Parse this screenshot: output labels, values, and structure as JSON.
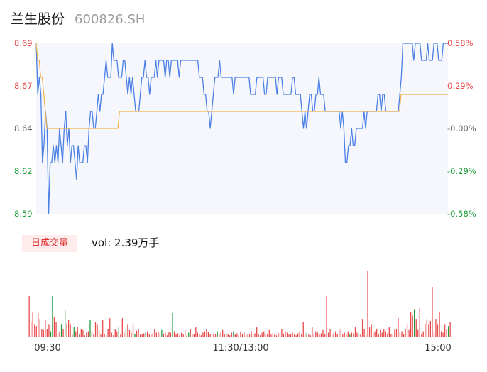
{
  "header": {
    "name": "兰生股份",
    "code": "600826.SH"
  },
  "volume_panel": {
    "badge": "日成交量",
    "vol_label": "vol: 2.39万手"
  },
  "colors": {
    "price_line": "#4a7fe6",
    "avg_line": "#f2b347",
    "up": "#e84a4a",
    "down": "#1e9e3a",
    "flat": "#666666",
    "area": "#f5f7fd"
  },
  "chart_data": [
    {
      "type": "line",
      "title": "",
      "x_ticks": [
        "09:30",
        "11:30/13:00",
        "15:00"
      ],
      "price_ticks": [
        "8.69",
        "8.67",
        "8.64",
        "8.62",
        "8.59"
      ],
      "pct_ticks": [
        "0.58%",
        "0.29%",
        "-0.00%",
        "-0.29%",
        "-0.58%"
      ],
      "ylim": [
        8.59,
        8.69
      ],
      "prev_close": 8.64,
      "series": [
        {
          "role": "price",
          "values": [
            8.69,
            8.66,
            8.67,
            8.66,
            8.62,
            8.63,
            8.65,
            8.64,
            8.59,
            8.62,
            8.62,
            8.63,
            8.62,
            8.63,
            8.62,
            8.64,
            8.63,
            8.62,
            8.64,
            8.65,
            8.63,
            8.64,
            8.62,
            8.63,
            8.63,
            8.62,
            8.61,
            8.63,
            8.62,
            8.62,
            8.62,
            8.63,
            8.63,
            8.62,
            8.64,
            8.65,
            8.65,
            8.64,
            8.64,
            8.65,
            8.66,
            8.65,
            8.66,
            8.66,
            8.67,
            8.68,
            8.67,
            8.67,
            8.67,
            8.69,
            8.68,
            8.68,
            8.68,
            8.67,
            8.67,
            8.67,
            8.68,
            8.68,
            8.67,
            8.66,
            8.67,
            8.66,
            8.67,
            8.66,
            8.65,
            8.65,
            8.65,
            8.66,
            8.67,
            8.67,
            8.68,
            8.67,
            8.67,
            8.66,
            8.67,
            8.67,
            8.67,
            8.68,
            8.67,
            8.68,
            8.68,
            8.68,
            8.68,
            8.67,
            8.68,
            8.68,
            8.67,
            8.68,
            8.68,
            8.68,
            8.68,
            8.68,
            8.67,
            8.68,
            8.68,
            8.68,
            8.68,
            8.68,
            8.68,
            8.68,
            8.68,
            8.68,
            8.68,
            8.68,
            8.68,
            8.67,
            8.67,
            8.67,
            8.66,
            8.66,
            8.65,
            8.65,
            8.64,
            8.65,
            8.66,
            8.67,
            8.67,
            8.67,
            8.68,
            8.67,
            8.67,
            8.67,
            8.67,
            8.67,
            8.67,
            8.67,
            8.67,
            8.66,
            8.67,
            8.67,
            8.67,
            8.67,
            8.67,
            8.67,
            8.67,
            8.67,
            8.67,
            8.67,
            8.66,
            8.66,
            8.66,
            8.66,
            8.67,
            8.67,
            8.67,
            8.67,
            8.67,
            8.66,
            8.66,
            8.67,
            8.67,
            8.67,
            8.67,
            8.67,
            8.67,
            8.66,
            8.67,
            8.67,
            8.67,
            8.66,
            8.66,
            8.66,
            8.66,
            8.66,
            8.66,
            8.67,
            8.67,
            8.66,
            8.66,
            8.66,
            8.66,
            8.65,
            8.64,
            8.65,
            8.64,
            8.65,
            8.66,
            8.66,
            8.65,
            8.65,
            8.66,
            8.66,
            8.67,
            8.66,
            8.66,
            8.66,
            8.65,
            8.65,
            8.65,
            8.65,
            8.65,
            8.65,
            8.65,
            8.65,
            8.65,
            8.65,
            8.64,
            8.65,
            8.64,
            8.62,
            8.62,
            8.63,
            8.63,
            8.64,
            8.63,
            8.63,
            8.64,
            8.64,
            8.64,
            8.64,
            8.64,
            8.65,
            8.64,
            8.65,
            8.65,
            8.65,
            8.65,
            8.65,
            8.65,
            8.65,
            8.66,
            8.66,
            8.65,
            8.66,
            8.66,
            8.65,
            8.65,
            8.65,
            8.65,
            8.65,
            8.65,
            8.65,
            8.65,
            8.65,
            8.66,
            8.67,
            8.69,
            8.69,
            8.69,
            8.69,
            8.69,
            8.69,
            8.69,
            8.68,
            8.69,
            8.69,
            8.69,
            8.69,
            8.68,
            8.68,
            8.68,
            8.68,
            8.69,
            8.68,
            8.68,
            8.68,
            8.69,
            8.69,
            8.69,
            8.68,
            8.68,
            8.68,
            8.69,
            8.69,
            8.69,
            8.69
          ]
        },
        {
          "role": "average",
          "values": [
            8.69,
            8.68,
            8.68,
            8.67,
            8.67,
            8.66,
            8.65,
            8.64,
            8.64,
            8.64,
            8.64,
            8.64,
            8.64,
            8.64,
            8.64,
            8.64,
            8.64,
            8.64,
            8.64,
            8.64,
            8.64,
            8.64,
            8.64,
            8.64,
            8.64,
            8.64,
            8.64,
            8.64,
            8.64,
            8.64,
            8.64,
            8.64,
            8.64,
            8.64,
            8.64,
            8.64,
            8.64,
            8.64,
            8.64,
            8.64,
            8.64,
            8.64,
            8.64,
            8.64,
            8.64,
            8.64,
            8.64,
            8.64,
            8.64,
            8.64,
            8.64,
            8.64,
            8.64,
            8.64,
            8.64,
            8.65,
            8.65,
            8.65,
            8.65,
            8.65,
            8.65,
            8.65,
            8.65,
            8.65,
            8.65,
            8.65,
            8.65,
            8.65,
            8.65,
            8.65,
            8.65,
            8.65,
            8.65,
            8.65,
            8.65,
            8.65,
            8.65,
            8.65,
            8.65,
            8.65,
            8.65,
            8.65,
            8.65,
            8.65,
            8.65,
            8.65,
            8.65,
            8.65,
            8.65,
            8.65,
            8.65,
            8.65,
            8.65,
            8.65,
            8.65,
            8.65,
            8.65,
            8.65,
            8.65,
            8.65,
            8.65,
            8.65,
            8.65,
            8.65,
            8.65,
            8.65,
            8.65,
            8.65,
            8.65,
            8.65,
            8.65,
            8.65,
            8.65,
            8.65,
            8.65,
            8.65,
            8.65,
            8.65,
            8.65,
            8.65,
            8.65,
            8.65,
            8.65,
            8.65,
            8.65,
            8.65,
            8.65,
            8.65,
            8.65,
            8.65,
            8.65,
            8.65,
            8.65,
            8.65,
            8.65,
            8.65,
            8.65,
            8.65,
            8.65,
            8.65,
            8.65,
            8.65,
            8.65,
            8.65,
            8.65,
            8.65,
            8.65,
            8.65,
            8.65,
            8.65,
            8.65,
            8.65,
            8.65,
            8.65,
            8.65,
            8.65,
            8.65,
            8.65,
            8.65,
            8.65,
            8.65,
            8.65,
            8.65,
            8.65,
            8.65,
            8.65,
            8.65,
            8.65,
            8.65,
            8.65,
            8.65,
            8.65,
            8.65,
            8.65,
            8.65,
            8.65,
            8.65,
            8.65,
            8.65,
            8.65,
            8.65,
            8.65,
            8.65,
            8.65,
            8.65,
            8.65,
            8.65,
            8.65,
            8.65,
            8.65,
            8.65,
            8.65,
            8.65,
            8.65,
            8.65,
            8.65,
            8.65,
            8.65,
            8.65,
            8.65,
            8.65,
            8.65,
            8.65,
            8.65,
            8.65,
            8.65,
            8.65,
            8.65,
            8.65,
            8.65,
            8.65,
            8.65,
            8.65,
            8.65,
            8.65,
            8.65,
            8.65,
            8.65,
            8.65,
            8.65,
            8.65,
            8.65,
            8.65,
            8.65,
            8.65,
            8.65,
            8.65,
            8.65,
            8.65,
            8.65,
            8.65,
            8.65,
            8.65,
            8.65,
            8.65,
            8.65,
            8.65,
            8.65,
            8.65,
            8.65,
            8.65,
            8.66,
            8.66,
            8.66,
            8.66,
            8.66,
            8.66,
            8.66,
            8.66,
            8.66,
            8.66,
            8.66,
            8.66,
            8.66,
            8.66,
            8.66,
            8.66,
            8.66,
            8.66,
            8.66,
            8.66,
            8.66,
            8.66,
            8.66,
            8.66,
            8.66,
            8.66,
            8.66,
            8.66,
            8.66,
            8.66,
            8.66,
            8.66
          ]
        }
      ]
    },
    {
      "type": "bar",
      "title": "",
      "x_ticks": [
        "09:30",
        "11:30/13:00",
        "15:00"
      ],
      "ylim": [
        0,
        100
      ],
      "values": [
        62,
        22,
        38,
        18,
        16,
        36,
        26,
        12,
        10,
        25,
        12,
        18,
        8,
        62,
        30,
        22,
        5,
        8,
        18,
        12,
        40,
        20,
        25,
        18,
        4,
        15,
        8,
        14,
        3,
        12,
        10,
        2,
        6,
        8,
        25,
        8,
        4,
        22,
        18,
        10,
        3,
        25,
        4,
        2,
        12,
        28,
        6,
        2,
        12,
        8,
        14,
        3,
        28,
        6,
        12,
        18,
        10,
        6,
        18,
        4,
        9,
        12,
        3,
        4,
        5,
        6,
        8,
        4,
        3,
        5,
        12,
        6,
        8,
        5,
        10,
        4,
        6,
        2,
        7,
        6,
        36,
        8,
        3,
        5,
        2,
        6,
        4,
        10,
        2,
        6,
        12,
        3,
        4,
        14,
        6,
        4,
        2,
        6,
        8,
        12,
        7,
        4,
        3,
        5,
        4,
        8,
        3,
        6,
        10,
        4,
        3,
        4,
        2,
        6,
        8,
        3,
        5,
        2,
        8,
        4,
        6,
        2,
        3,
        4,
        8,
        3,
        5,
        14,
        4,
        2,
        6,
        8,
        3,
        4,
        10,
        3,
        5,
        4,
        2,
        6,
        3,
        12,
        4,
        8,
        6,
        3,
        4,
        6,
        3,
        2,
        5,
        8,
        4,
        22,
        4,
        6,
        3,
        2,
        14,
        4,
        8,
        6,
        3,
        5,
        10,
        4,
        62,
        6,
        12,
        3,
        5,
        8,
        4,
        10,
        12,
        3,
        6,
        4,
        8,
        3,
        6,
        5,
        14,
        6,
        4,
        3,
        26,
        12,
        3,
        100,
        14,
        18,
        6,
        8,
        12,
        4,
        10,
        6,
        12,
        8,
        5,
        14,
        4,
        3,
        10,
        12,
        28,
        6,
        8,
        4,
        12,
        20,
        10,
        38,
        32,
        42,
        26,
        10,
        44,
        4,
        8,
        20,
        26,
        18,
        24,
        76,
        8,
        26,
        18,
        38,
        8,
        6,
        18,
        12,
        16,
        22
      ],
      "colors": [
        "up",
        "up",
        "up",
        "up",
        "up",
        "up",
        "up",
        "up",
        "up",
        "up",
        "up",
        "up",
        "down",
        "down",
        "up",
        "up",
        "up",
        "up",
        "down",
        "up",
        "down",
        "up",
        "up",
        "up",
        "up",
        "down",
        "up",
        "up",
        "flat",
        "up",
        "up",
        "up",
        "up",
        "up",
        "down",
        "up",
        "up",
        "up",
        "up",
        "up",
        "up",
        "up",
        "up",
        "down",
        "up",
        "up",
        "up",
        "up",
        "up",
        "up",
        "down",
        "up",
        "up",
        "up",
        "down",
        "up",
        "up",
        "up",
        "up",
        "down",
        "up",
        "up",
        "up",
        "up",
        "up",
        "down",
        "up",
        "up",
        "up",
        "up",
        "up",
        "up",
        "up",
        "up",
        "down",
        "up",
        "up",
        "up",
        "up",
        "up",
        "down",
        "up",
        "up",
        "up",
        "up",
        "up",
        "up",
        "up",
        "up",
        "down",
        "up",
        "up",
        "up",
        "up",
        "up",
        "up",
        "up",
        "up",
        "up",
        "up",
        "up",
        "up",
        "up",
        "up",
        "up",
        "down",
        "up",
        "up",
        "up",
        "up",
        "up",
        "up",
        "up",
        "up",
        "down",
        "up",
        "up",
        "up",
        "up",
        "up",
        "up",
        "up",
        "up",
        "up",
        "up",
        "up",
        "up",
        "up",
        "up",
        "up",
        "up",
        "up",
        "up",
        "up",
        "up",
        "up",
        "up",
        "up",
        "up",
        "up",
        "up",
        "up",
        "up",
        "up",
        "up",
        "up",
        "up",
        "up",
        "up",
        "up",
        "up",
        "up",
        "up",
        "up",
        "up",
        "down",
        "up",
        "up",
        "up",
        "up",
        "up",
        "up",
        "up",
        "up",
        "up",
        "up",
        "up",
        "up",
        "up",
        "up",
        "up",
        "up",
        "up",
        "up",
        "up",
        "up",
        "up",
        "up",
        "up",
        "down",
        "up",
        "up",
        "up",
        "up",
        "up",
        "up",
        "up",
        "up",
        "up",
        "up",
        "up",
        "up",
        "up",
        "up",
        "up",
        "up",
        "up",
        "up",
        "up",
        "up",
        "up",
        "up",
        "up",
        "up",
        "up",
        "up",
        "up",
        "up",
        "up",
        "up",
        "up",
        "up",
        "up",
        "up",
        "up",
        "down",
        "up",
        "up",
        "up",
        "up",
        "up",
        "up",
        "up",
        "up",
        "up",
        "up",
        "up",
        "up",
        "up",
        "up",
        "up",
        "up",
        "up",
        "up",
        "down",
        "up",
        "up",
        "up",
        "up",
        "up",
        "up"
      ]
    }
  ]
}
